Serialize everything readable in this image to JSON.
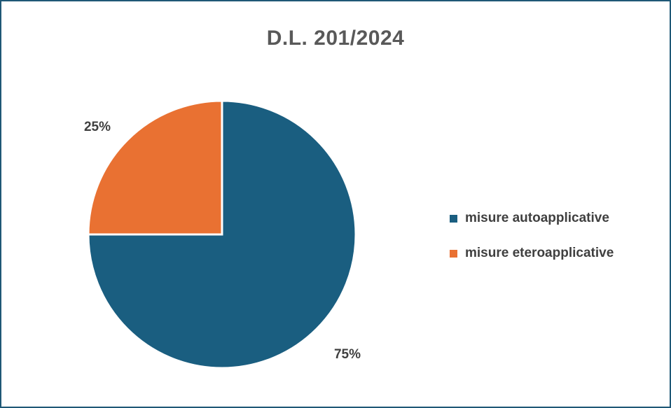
{
  "chart_data": {
    "type": "pie",
    "title": "D.L. 201/2024",
    "categories": [
      "misure autoapplicative",
      "misure eteroapplicative"
    ],
    "values": [
      75,
      25
    ],
    "value_labels": [
      "75%",
      "25%"
    ],
    "colors": [
      "#1a5e80",
      "#e97132"
    ],
    "legend_position": "right"
  }
}
